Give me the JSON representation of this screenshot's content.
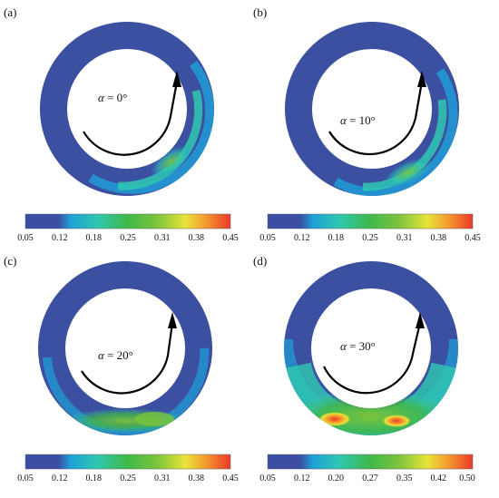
{
  "panels": [
    {
      "label": "(a)",
      "angle_symbol": "α",
      "angle_text": " = 0°",
      "colorbar_ticks": [
        "0.05",
        "0.12",
        "0.18",
        "0.25",
        "0.31",
        "0.38",
        "0.45"
      ]
    },
    {
      "label": "(b)",
      "angle_symbol": "α",
      "angle_text": " = 10°",
      "colorbar_ticks": [
        "0.05",
        "0.12",
        "0.18",
        "0.25",
        "0.31",
        "0.38",
        "0.45"
      ]
    },
    {
      "label": "(c)",
      "angle_symbol": "α",
      "angle_text": " = 20°",
      "colorbar_ticks": [
        "0.05",
        "0.12",
        "0.18",
        "0.25",
        "0.31",
        "0.38",
        "0.45"
      ]
    },
    {
      "label": "(d)",
      "angle_symbol": "α",
      "angle_text": " = 30°",
      "colorbar_ticks": [
        "0.05",
        "0.12",
        "0.20",
        "0.27",
        "0.35",
        "0.42",
        "0.50"
      ]
    }
  ],
  "colors": {
    "ring_base": "#3b50a0",
    "colormap": [
      "#3b4ea3",
      "#1fa0d8",
      "#2fc8b0",
      "#40b848",
      "#7cc43c",
      "#e8e43a",
      "#f59a2e",
      "#ea3a2a"
    ]
  }
}
